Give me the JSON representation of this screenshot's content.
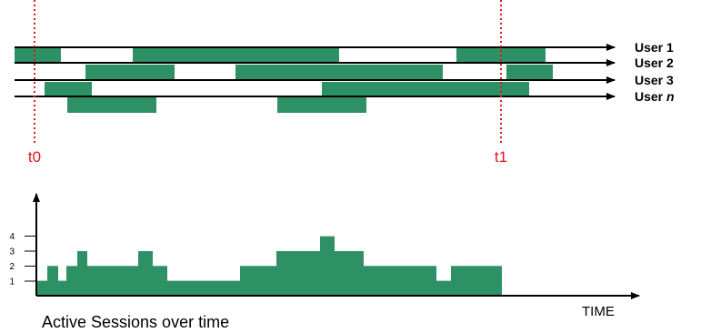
{
  "colors": {
    "session": "#2e9166",
    "marker": "#e8141a",
    "line": "#000000"
  },
  "users": [
    {
      "label": "User 1",
      "name_italic": "",
      "sessions": [
        [
          16,
          67
        ],
        [
          146,
          373
        ],
        [
          502,
          600
        ]
      ]
    },
    {
      "label": "User 2",
      "name_italic": "",
      "sessions": [
        [
          94,
          192
        ],
        [
          259,
          487
        ],
        [
          557,
          608
        ]
      ]
    },
    {
      "label": "User 3",
      "name_italic": "",
      "sessions": [
        [
          49,
          101
        ],
        [
          354,
          582
        ]
      ]
    },
    {
      "label": "User ",
      "name_italic": "n",
      "sessions": [
        [
          74,
          172
        ],
        [
          305,
          403
        ]
      ]
    }
  ],
  "markers": [
    {
      "label": "t0",
      "x": 38
    },
    {
      "label": "t1",
      "x": 551
    }
  ],
  "chart_data": {
    "type": "area",
    "title": "Active Sessions over time",
    "xlabel": "TIME",
    "ylabel": "",
    "yticks": [
      "1",
      "2",
      "3",
      "4"
    ],
    "ylim": [
      0,
      5
    ],
    "steps": [
      [
        40,
        52,
        1
      ],
      [
        52,
        64,
        2
      ],
      [
        64,
        73,
        1
      ],
      [
        73,
        85,
        2
      ],
      [
        85,
        96,
        3
      ],
      [
        96,
        152,
        2
      ],
      [
        152,
        168,
        3
      ],
      [
        168,
        184,
        2
      ],
      [
        184,
        264,
        1
      ],
      [
        264,
        304,
        2
      ],
      [
        304,
        352,
        3
      ],
      [
        352,
        368,
        4
      ],
      [
        368,
        400,
        3
      ],
      [
        400,
        480,
        2
      ],
      [
        480,
        496,
        1
      ],
      [
        496,
        552,
        2
      ]
    ]
  }
}
